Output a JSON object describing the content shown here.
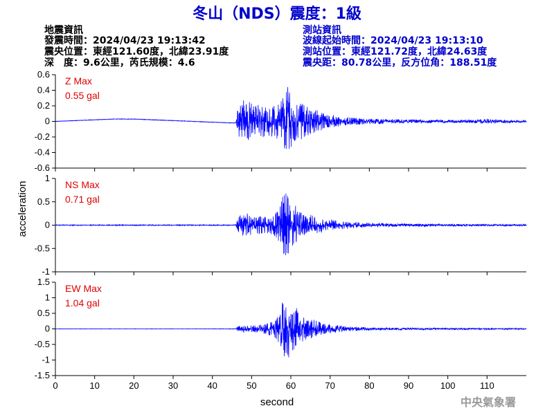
{
  "title": "冬山（NDS）震度：1級",
  "quake_info": {
    "heading": "地震資訊",
    "lines": [
      "發震時間：2024/04/23 19:13:42",
      "震央位置：東經121.60度，北緯23.91度",
      "深　度：9.6公里，芮氏規模：4.6"
    ]
  },
  "station_info": {
    "heading": "測站資訊",
    "lines": [
      "波線起始時間：2024/04/23 19:13:10",
      "測站位置：東經121.72度，北緯24.63度",
      "震央距：80.78公里，反方位角：188.51度"
    ]
  },
  "credit": "中央氣象署",
  "colors": {
    "title": "#0000cc",
    "station": "#0000cc",
    "trace": "#0000ff",
    "max": "#e00000"
  },
  "chart_data": {
    "type": "line",
    "xlabel": "second",
    "ylabel": "acceleration",
    "xlim": [
      0,
      120
    ],
    "x_ticks": [
      0,
      10,
      20,
      30,
      40,
      50,
      60,
      70,
      80,
      90,
      100,
      110
    ],
    "panels": [
      {
        "component": "Z",
        "max_label": "Z Max",
        "max_value": "0.55 gal",
        "ylim": [
          -0.6,
          0.6
        ],
        "y_ticks": [
          -0.6,
          -0.4,
          -0.2,
          0,
          0.2,
          0.4,
          0.6
        ],
        "y_tick_labels": [
          "-0.6",
          "-0.4",
          "-0.2",
          "0",
          "0.2",
          "0.4",
          "0.6"
        ],
        "envelope": {
          "x": [
            0,
            3,
            10,
            20,
            30,
            40,
            46,
            46.5,
            48,
            50,
            52,
            54,
            56,
            58,
            59,
            60,
            62,
            64,
            66,
            68,
            70,
            72,
            75,
            80,
            85,
            90,
            95,
            100,
            105,
            110,
            115,
            120
          ],
          "y": [
            0.0,
            0.01,
            0.02,
            0.02,
            0.01,
            0.01,
            0.01,
            0.18,
            0.3,
            0.25,
            0.22,
            0.2,
            0.2,
            0.35,
            0.55,
            0.38,
            0.25,
            0.2,
            0.16,
            0.12,
            0.09,
            0.07,
            0.05,
            0.035,
            0.03,
            0.025,
            0.02,
            0.02,
            0.02,
            0.03,
            0.02,
            0.015
          ]
        },
        "baseline": {
          "x": [
            0,
            5,
            10,
            15,
            20,
            25,
            30,
            35,
            40,
            45
          ],
          "y": [
            0.0,
            0.01,
            0.02,
            0.03,
            0.03,
            0.02,
            0.01,
            0.0,
            -0.01,
            -0.02
          ]
        }
      },
      {
        "component": "NS",
        "max_label": "NS Max",
        "max_value": "0.71 gal",
        "ylim": [
          -1,
          1
        ],
        "y_ticks": [
          -1,
          -0.5,
          0,
          0.5,
          1
        ],
        "y_tick_labels": [
          "-1",
          "-0.5",
          "0",
          "0.5",
          "1"
        ],
        "envelope": {
          "x": [
            0,
            10,
            20,
            30,
            40,
            46,
            46.5,
            48,
            50,
            52,
            54,
            56,
            57,
            58,
            59,
            60,
            61,
            62,
            64,
            66,
            68,
            70,
            73,
            76,
            80,
            85,
            90,
            95,
            100,
            110,
            120
          ],
          "y": [
            0.01,
            0.01,
            0.01,
            0.01,
            0.01,
            0.01,
            0.15,
            0.3,
            0.2,
            0.2,
            0.18,
            0.25,
            0.35,
            0.65,
            0.71,
            0.5,
            0.45,
            0.3,
            0.25,
            0.2,
            0.16,
            0.12,
            0.09,
            0.07,
            0.05,
            0.04,
            0.03,
            0.03,
            0.025,
            0.02,
            0.02
          ]
        }
      },
      {
        "component": "EW",
        "max_label": "EW Max",
        "max_value": "1.04 gal",
        "ylim": [
          -1.5,
          1.5
        ],
        "y_ticks": [
          -1.5,
          -1,
          -0.5,
          0,
          0.5,
          1,
          1.5
        ],
        "y_tick_labels": [
          "-1.5",
          "-1",
          "-0.5",
          "0",
          "0.5",
          "1",
          "1.5"
        ],
        "envelope": {
          "x": [
            0,
            10,
            20,
            30,
            40,
            46,
            46.5,
            48,
            50,
            52,
            54,
            56,
            57,
            58,
            59,
            60,
            61,
            62,
            64,
            66,
            68,
            70,
            73,
            76,
            80,
            85,
            90,
            95,
            100,
            110,
            120
          ],
          "y": [
            0.005,
            0.005,
            0.005,
            0.005,
            0.005,
            0.01,
            0.08,
            0.12,
            0.12,
            0.12,
            0.18,
            0.3,
            0.5,
            0.95,
            1.04,
            0.8,
            0.95,
            0.5,
            0.35,
            0.3,
            0.22,
            0.15,
            0.1,
            0.07,
            0.05,
            0.04,
            0.035,
            0.03,
            0.03,
            0.025,
            0.02
          ]
        }
      }
    ]
  }
}
